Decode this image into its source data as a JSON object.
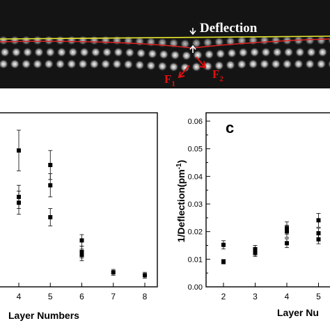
{
  "micrograph": {
    "deflection_label": "Deflection",
    "force_1": {
      "letter": "F",
      "index": "1"
    },
    "force_2": {
      "letter": "F",
      "index": "2"
    },
    "colors": {
      "background": "#141414",
      "reference_line": "#e8e830",
      "deflected_line": "#e02020",
      "arrow": "#e01010",
      "atom": "#ffffff"
    }
  },
  "chart_data": [
    {
      "type": "scatter",
      "panel": "b",
      "xlabel": "Layer Numbers",
      "xticks": [
        "4",
        "5",
        "6",
        "7",
        "8"
      ],
      "series": [
        {
          "points": [
            [
              4,
              0.047
            ],
            [
              4,
              0.031
            ],
            [
              4,
              0.029
            ],
            [
              5,
              0.042
            ],
            [
              5,
              0.035
            ],
            [
              5,
              0.024
            ],
            [
              6,
              0.016
            ],
            [
              6,
              0.012
            ],
            [
              6,
              0.011
            ],
            [
              7,
              0.005
            ],
            [
              8,
              0.004
            ]
          ],
          "errors": [
            0.007,
            0.004,
            0.004,
            0.005,
            0.004,
            0.003,
            0.002,
            0.002,
            0.002,
            0.001,
            0.001
          ]
        }
      ]
    },
    {
      "type": "scatter",
      "panel": "c",
      "panel_label": "c",
      "xlabel": "Layer Nu",
      "ylabel_base": "1/Deflection(pm",
      "ylabel_sup": "-1",
      "ylabel_close": ")",
      "ylim": [
        0,
        0.06
      ],
      "yticks": [
        "0.00",
        "0.01",
        "0.02",
        "0.03",
        "0.04",
        "0.05",
        "0.06"
      ],
      "xticks": [
        "2",
        "3",
        "4",
        "5"
      ],
      "series": [
        {
          "points": [
            [
              2,
              0.0152
            ],
            [
              2,
              0.0091
            ],
            [
              3,
              0.0136
            ],
            [
              3,
              0.0129
            ],
            [
              3,
              0.0124
            ],
            [
              4,
              0.0213
            ],
            [
              4,
              0.0201
            ],
            [
              4,
              0.0158
            ],
            [
              5,
              0.0241
            ],
            [
              5,
              0.0194
            ],
            [
              5,
              0.0172
            ]
          ],
          "errors": [
            0.0015,
            0.0008,
            0.0014,
            0.0014,
            0.0014,
            0.0022,
            0.0022,
            0.0016,
            0.0025,
            0.0018,
            0.0016
          ]
        }
      ]
    }
  ]
}
